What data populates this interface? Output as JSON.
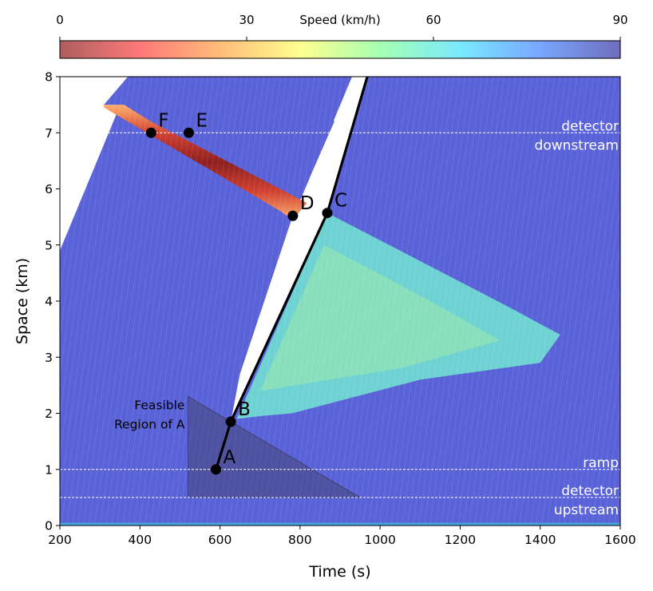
{
  "chart_data": {
    "type": "heatmap",
    "title": "",
    "xlabel": "Time (s)",
    "ylabel": "Space (km)",
    "xlim": [
      200,
      1600
    ],
    "ylim": [
      0,
      8
    ],
    "x_ticks": [
      200,
      400,
      600,
      800,
      1000,
      1200,
      1400,
      1600
    ],
    "y_ticks": [
      0,
      1,
      2,
      3,
      4,
      5,
      6,
      7,
      8
    ],
    "colorbar": {
      "label": "Speed (km/h)",
      "range": [
        0,
        90
      ],
      "ticks": [
        0,
        30,
        60,
        90
      ],
      "colors": [
        "#8b1a1a",
        "#ff4040",
        "#ffa040",
        "#ffff60",
        "#80ff90",
        "#40e0ff",
        "#4080ff",
        "#3030a0"
      ]
    },
    "reference_lines": [
      {
        "y": 7.0,
        "label_top": "detector",
        "label_bottom": "downstream"
      },
      {
        "y": 1.0,
        "label_top": "ramp",
        "label_bottom": ""
      },
      {
        "y": 0.5,
        "label_top": "detector",
        "label_bottom": "upstream"
      }
    ],
    "points": [
      {
        "label": "A",
        "x": 590,
        "y": 1.0
      },
      {
        "label": "B",
        "x": 627,
        "y": 1.85
      },
      {
        "label": "C",
        "x": 868,
        "y": 5.57
      },
      {
        "label": "D",
        "x": 782,
        "y": 5.52
      },
      {
        "label": "E",
        "x": 522,
        "y": 7.0
      },
      {
        "label": "F",
        "x": 428,
        "y": 7.0
      }
    ],
    "trajectory": [
      [
        590,
        1.0
      ],
      [
        627,
        1.85
      ],
      [
        868,
        5.57
      ],
      [
        968,
        8.0
      ]
    ],
    "feasible_region": {
      "label_line1": "Feasible",
      "label_line2": "Region of A",
      "vertices": [
        [
          520,
          2.3
        ],
        [
          520,
          0.5
        ],
        [
          950,
          0.5
        ]
      ]
    },
    "regions": {
      "free_flow_color": "#5860d8",
      "congestion_mid_color": "#70e8d0",
      "jam_color": "#b03030"
    }
  }
}
